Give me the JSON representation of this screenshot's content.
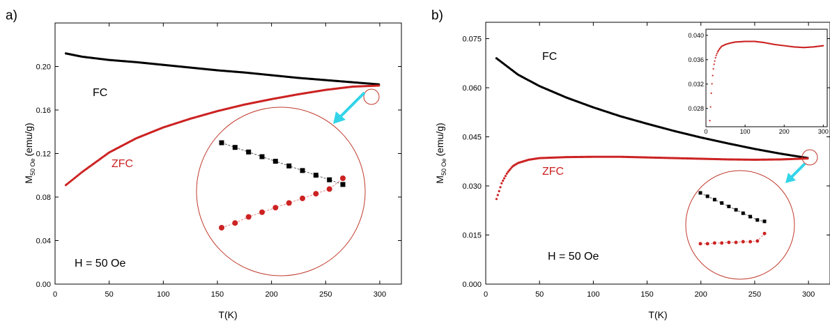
{
  "chart_data": [
    {
      "panel_label": "a)",
      "type": "scatter",
      "xlabel": "T(K)",
      "ylabel": "M",
      "ylabel_sub": "50 Oe",
      "ylabel_unit": "(emu/g)",
      "xlim": [
        0,
        320
      ],
      "ylim": [
        0,
        0.24
      ],
      "xticks": [
        0,
        50,
        100,
        150,
        200,
        250,
        300
      ],
      "yticks": [
        0.0,
        0.04,
        0.08,
        0.12,
        0.16,
        0.2
      ],
      "ytick_labels": [
        "0.00",
        "0.04",
        "0.08",
        "0.12",
        "0.16",
        "0.20"
      ],
      "series": [
        {
          "name": "FC",
          "color": "#000000",
          "x": [
            10,
            25,
            50,
            75,
            100,
            125,
            150,
            175,
            200,
            225,
            250,
            275,
            300
          ],
          "y": [
            0.212,
            0.209,
            0.206,
            0.204,
            0.2015,
            0.199,
            0.1965,
            0.1945,
            0.192,
            0.1895,
            0.1875,
            0.1855,
            0.1835
          ]
        },
        {
          "name": "ZFC",
          "color": "#cc2222",
          "x": [
            10,
            25,
            50,
            75,
            100,
            125,
            150,
            175,
            200,
            225,
            250,
            275,
            300
          ],
          "y": [
            0.091,
            0.103,
            0.121,
            0.134,
            0.144,
            0.152,
            0.159,
            0.165,
            0.17,
            0.1745,
            0.1785,
            0.1815,
            0.1825
          ]
        }
      ],
      "annotations": {
        "field": "H = 50 Oe",
        "fc_label": "FC",
        "zfc_label": "ZFC"
      },
      "zoom_detail": {
        "fc": [
          0.1855,
          0.1852,
          0.1849,
          0.1846,
          0.1843,
          0.184,
          0.1837,
          0.1834,
          0.1831,
          0.1828
        ],
        "zfc": [
          0.18,
          0.1803,
          0.1807,
          0.181,
          0.1813,
          0.1816,
          0.1819,
          0.1822,
          0.1825,
          0.1832
        ]
      }
    },
    {
      "panel_label": "b)",
      "type": "scatter",
      "xlabel": "T(K)",
      "ylabel": "M",
      "ylabel_sub": "50 Oe",
      "ylabel_unit": "(emu/g)",
      "xlim": [
        0,
        320
      ],
      "ylim": [
        0,
        0.08
      ],
      "xticks": [
        0,
        50,
        100,
        150,
        200,
        250,
        300
      ],
      "yticks": [
        0.0,
        0.015,
        0.03,
        0.045,
        0.06,
        0.075
      ],
      "ytick_labels": [
        "0.000",
        "0.015",
        "0.030",
        "0.045",
        "0.060",
        "0.075"
      ],
      "series": [
        {
          "name": "FC",
          "color": "#000000",
          "x": [
            10,
            20,
            30,
            50,
            75,
            100,
            125,
            150,
            175,
            200,
            225,
            250,
            275,
            300
          ],
          "y": [
            0.069,
            0.0665,
            0.064,
            0.0605,
            0.057,
            0.054,
            0.0513,
            0.049,
            0.0468,
            0.0448,
            0.043,
            0.0413,
            0.0398,
            0.0385
          ]
        },
        {
          "name": "ZFC",
          "color": "#cc2222",
          "x": [
            10,
            15,
            20,
            25,
            30,
            40,
            50,
            75,
            100,
            125,
            150,
            175,
            200,
            225,
            250,
            275,
            300
          ],
          "y": [
            0.026,
            0.031,
            0.034,
            0.036,
            0.037,
            0.038,
            0.0385,
            0.0388,
            0.0389,
            0.0389,
            0.0387,
            0.0385,
            0.0383,
            0.0381,
            0.038,
            0.0381,
            0.0384
          ]
        }
      ],
      "annotations": {
        "field": "H = 50 Oe",
        "fc_label": "FC",
        "zfc_label": "ZFC"
      },
      "inset": {
        "xlim": [
          0,
          310
        ],
        "ylim": [
          0.025,
          0.041
        ],
        "xticks": [
          0,
          100,
          200,
          300
        ],
        "yticks": [
          0.028,
          0.032,
          0.036,
          0.04
        ],
        "ytick_labels": [
          "0.028",
          "0.032",
          "0.036",
          "0.040"
        ],
        "series": {
          "color": "#cc2222",
          "x": [
            10,
            12,
            14,
            16,
            18,
            20,
            25,
            30,
            35,
            40,
            50,
            60,
            75,
            100,
            125,
            150,
            175,
            200,
            225,
            250,
            275,
            300
          ],
          "y": [
            0.026,
            0.0285,
            0.031,
            0.0325,
            0.034,
            0.035,
            0.0365,
            0.0373,
            0.0378,
            0.0382,
            0.0385,
            0.0387,
            0.0389,
            0.039,
            0.039,
            0.0388,
            0.0385,
            0.0383,
            0.0381,
            0.038,
            0.0381,
            0.0383
          ]
        }
      },
      "zoom_detail": {
        "fc": [
          0.0392,
          0.03915,
          0.0391,
          0.03905,
          0.039,
          0.03895,
          0.0389,
          0.03885,
          0.0388,
          0.03878
        ],
        "zfc": [
          0.03845,
          0.03845,
          0.03846,
          0.03846,
          0.03847,
          0.03847,
          0.03848,
          0.03848,
          0.03849,
          0.0386
        ]
      }
    }
  ]
}
